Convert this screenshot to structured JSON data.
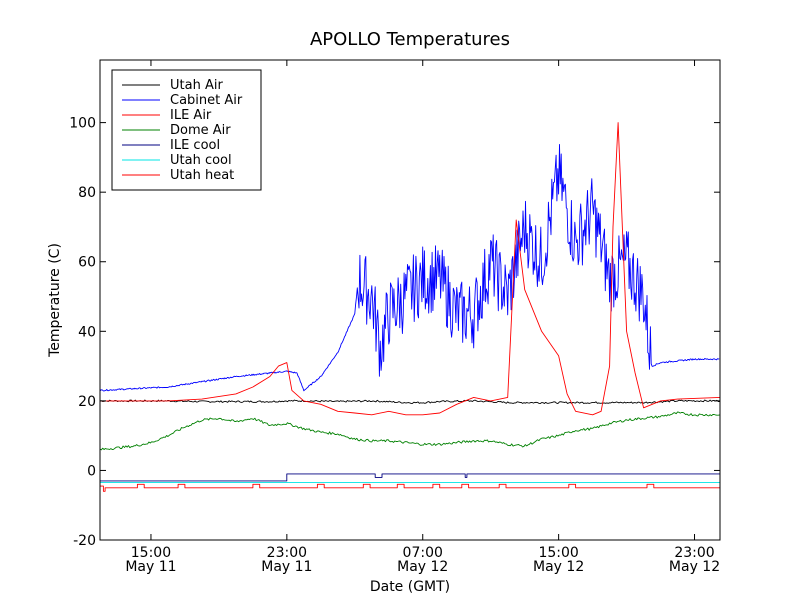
{
  "chart_data": {
    "type": "line",
    "title": "APOLLO Temperatures",
    "xlabel": "Date (GMT)",
    "ylabel": "Temperature (C)",
    "x_unit": "hours since 2014-05-11 12:00 GMT",
    "xlim": [
      0,
      36.5
    ],
    "ylim": [
      -20,
      118
    ],
    "yticks": [
      -20,
      0,
      20,
      40,
      60,
      80,
      100
    ],
    "xticks": [
      {
        "x": 3,
        "time": "15:00",
        "date": "May 11"
      },
      {
        "x": 11,
        "time": "23:00",
        "date": "May 11"
      },
      {
        "x": 19,
        "time": "07:00",
        "date": "May 12"
      },
      {
        "x": 27,
        "time": "15:00",
        "date": "May 12"
      },
      {
        "x": 35,
        "time": "23:00",
        "date": "May 12"
      }
    ],
    "legend_position": "top-left",
    "series": [
      {
        "name": "Utah Air",
        "color": "#000000",
        "style": "wiggle",
        "amp": 0.5,
        "x": [
          0,
          2,
          4,
          6,
          8,
          10,
          11,
          12,
          14,
          16,
          18,
          19,
          20,
          22,
          24,
          26,
          28,
          30,
          32,
          34,
          36.5
        ],
        "y": [
          20,
          20,
          20,
          19.8,
          19.8,
          19.8,
          20,
          20,
          19.8,
          20,
          19.5,
          19.5,
          19.8,
          20,
          19.5,
          19.5,
          19.5,
          19.5,
          19.5,
          20,
          20
        ]
      },
      {
        "name": "Cabinet Air",
        "color": "#0000ff",
        "style": "noisy",
        "amp": 20,
        "noise_from": 15.2,
        "noise_to": 32.5,
        "x": [
          0,
          2,
          4,
          6,
          8,
          10,
          11,
          11.6,
          12,
          13,
          14,
          15,
          15.2,
          16,
          16.5,
          17,
          18,
          19,
          20,
          21,
          22,
          23,
          24,
          25,
          26,
          27,
          28,
          29,
          30,
          31,
          32,
          32.5,
          33,
          35,
          36.5
        ],
        "y": [
          23,
          23.5,
          24,
          25.5,
          27,
          28,
          28.5,
          28,
          23,
          27,
          34,
          45,
          55,
          50,
          35,
          45,
          50,
          55,
          55,
          45,
          45,
          60,
          50,
          70,
          60,
          85,
          65,
          75,
          55,
          60,
          50,
          30,
          31,
          32,
          32
        ]
      },
      {
        "name": "ILE Air",
        "color": "#ff0000",
        "style": "line",
        "x": [
          0,
          2,
          4,
          6,
          8,
          9,
          10,
          10.5,
          11,
          11.3,
          12,
          13,
          14,
          15,
          16,
          17,
          18,
          19,
          20,
          21,
          22,
          23,
          24,
          24.5,
          25,
          26,
          27,
          27.5,
          28,
          29,
          29.5,
          30,
          30.2,
          30.5,
          31,
          31.5,
          32,
          33,
          34,
          36.5
        ],
        "y": [
          20,
          20,
          20,
          20.5,
          22,
          24,
          27,
          30,
          31,
          23,
          20,
          19,
          17,
          16.5,
          16,
          17,
          16,
          16,
          16.5,
          19,
          21,
          20,
          21,
          72,
          52,
          40,
          33,
          22,
          17,
          16,
          17,
          30,
          70,
          100,
          40,
          28,
          18,
          20,
          20.5,
          21
        ]
      },
      {
        "name": "Dome Air",
        "color": "#008000",
        "style": "wiggle",
        "amp": 0.7,
        "x": [
          0,
          1,
          2,
          3,
          4,
          5,
          6,
          7,
          8,
          9,
          10,
          11,
          12,
          13,
          14,
          15,
          16,
          17,
          18,
          19,
          20,
          21,
          22,
          23,
          24,
          25,
          26,
          27,
          28,
          29,
          30,
          31,
          32,
          33,
          34,
          35,
          36.5
        ],
        "y": [
          6,
          6.5,
          7,
          8,
          10,
          12.5,
          14.5,
          15,
          14,
          15,
          13,
          13.5,
          12,
          11,
          10.5,
          9,
          8.5,
          8.5,
          8,
          7.5,
          7.5,
          8,
          8.5,
          8.5,
          7.5,
          7,
          9,
          10,
          11.5,
          12,
          13.5,
          14.5,
          15,
          15.5,
          16.5,
          16,
          16
        ]
      },
      {
        "name": "ILE cool",
        "color": "#000080",
        "style": "line",
        "x": [
          0,
          11,
          11,
          16.2,
          16.2,
          16.6,
          16.6,
          21.5,
          21.5,
          21.6,
          21.6,
          36.5
        ],
        "y": [
          -3,
          -3,
          -1,
          -1,
          -2,
          -2,
          -1,
          -1,
          -2,
          -2,
          -1,
          -1
        ]
      },
      {
        "name": "Utah cool",
        "color": "#00e5e5",
        "style": "line",
        "x": [
          0,
          36.5
        ],
        "y": [
          -3.5,
          -3.5
        ]
      },
      {
        "name": "Utah heat",
        "color": "#ff0000",
        "style": "line",
        "x": [
          0,
          0.2,
          0.2,
          0.3,
          0.3,
          2.2,
          2.2,
          2.6,
          2.6,
          4.6,
          4.6,
          5,
          5,
          9,
          9,
          9.4,
          9.4,
          12.8,
          12.8,
          13.2,
          13.2,
          15.5,
          15.5,
          15.9,
          15.9,
          17.5,
          17.5,
          17.9,
          17.9,
          19.6,
          19.6,
          20,
          20,
          21.3,
          21.3,
          21.7,
          21.7,
          23.5,
          23.5,
          23.9,
          23.9,
          27.6,
          27.6,
          28,
          28,
          32.2,
          32.2,
          32.6,
          32.6,
          36.5
        ],
        "y": [
          -4.5,
          -4.5,
          -6,
          -6,
          -5,
          -5,
          -4,
          -4,
          -5,
          -5,
          -4,
          -4,
          -5,
          -5,
          -4,
          -4,
          -5,
          -5,
          -4,
          -4,
          -5,
          -5,
          -4,
          -4,
          -5,
          -5,
          -4,
          -4,
          -5,
          -5,
          -4,
          -4,
          -5,
          -5,
          -4,
          -4,
          -5,
          -5,
          -4,
          -4,
          -5,
          -5,
          -4,
          -4,
          -5,
          -5,
          -4,
          -4,
          -5,
          -5
        ]
      }
    ]
  }
}
